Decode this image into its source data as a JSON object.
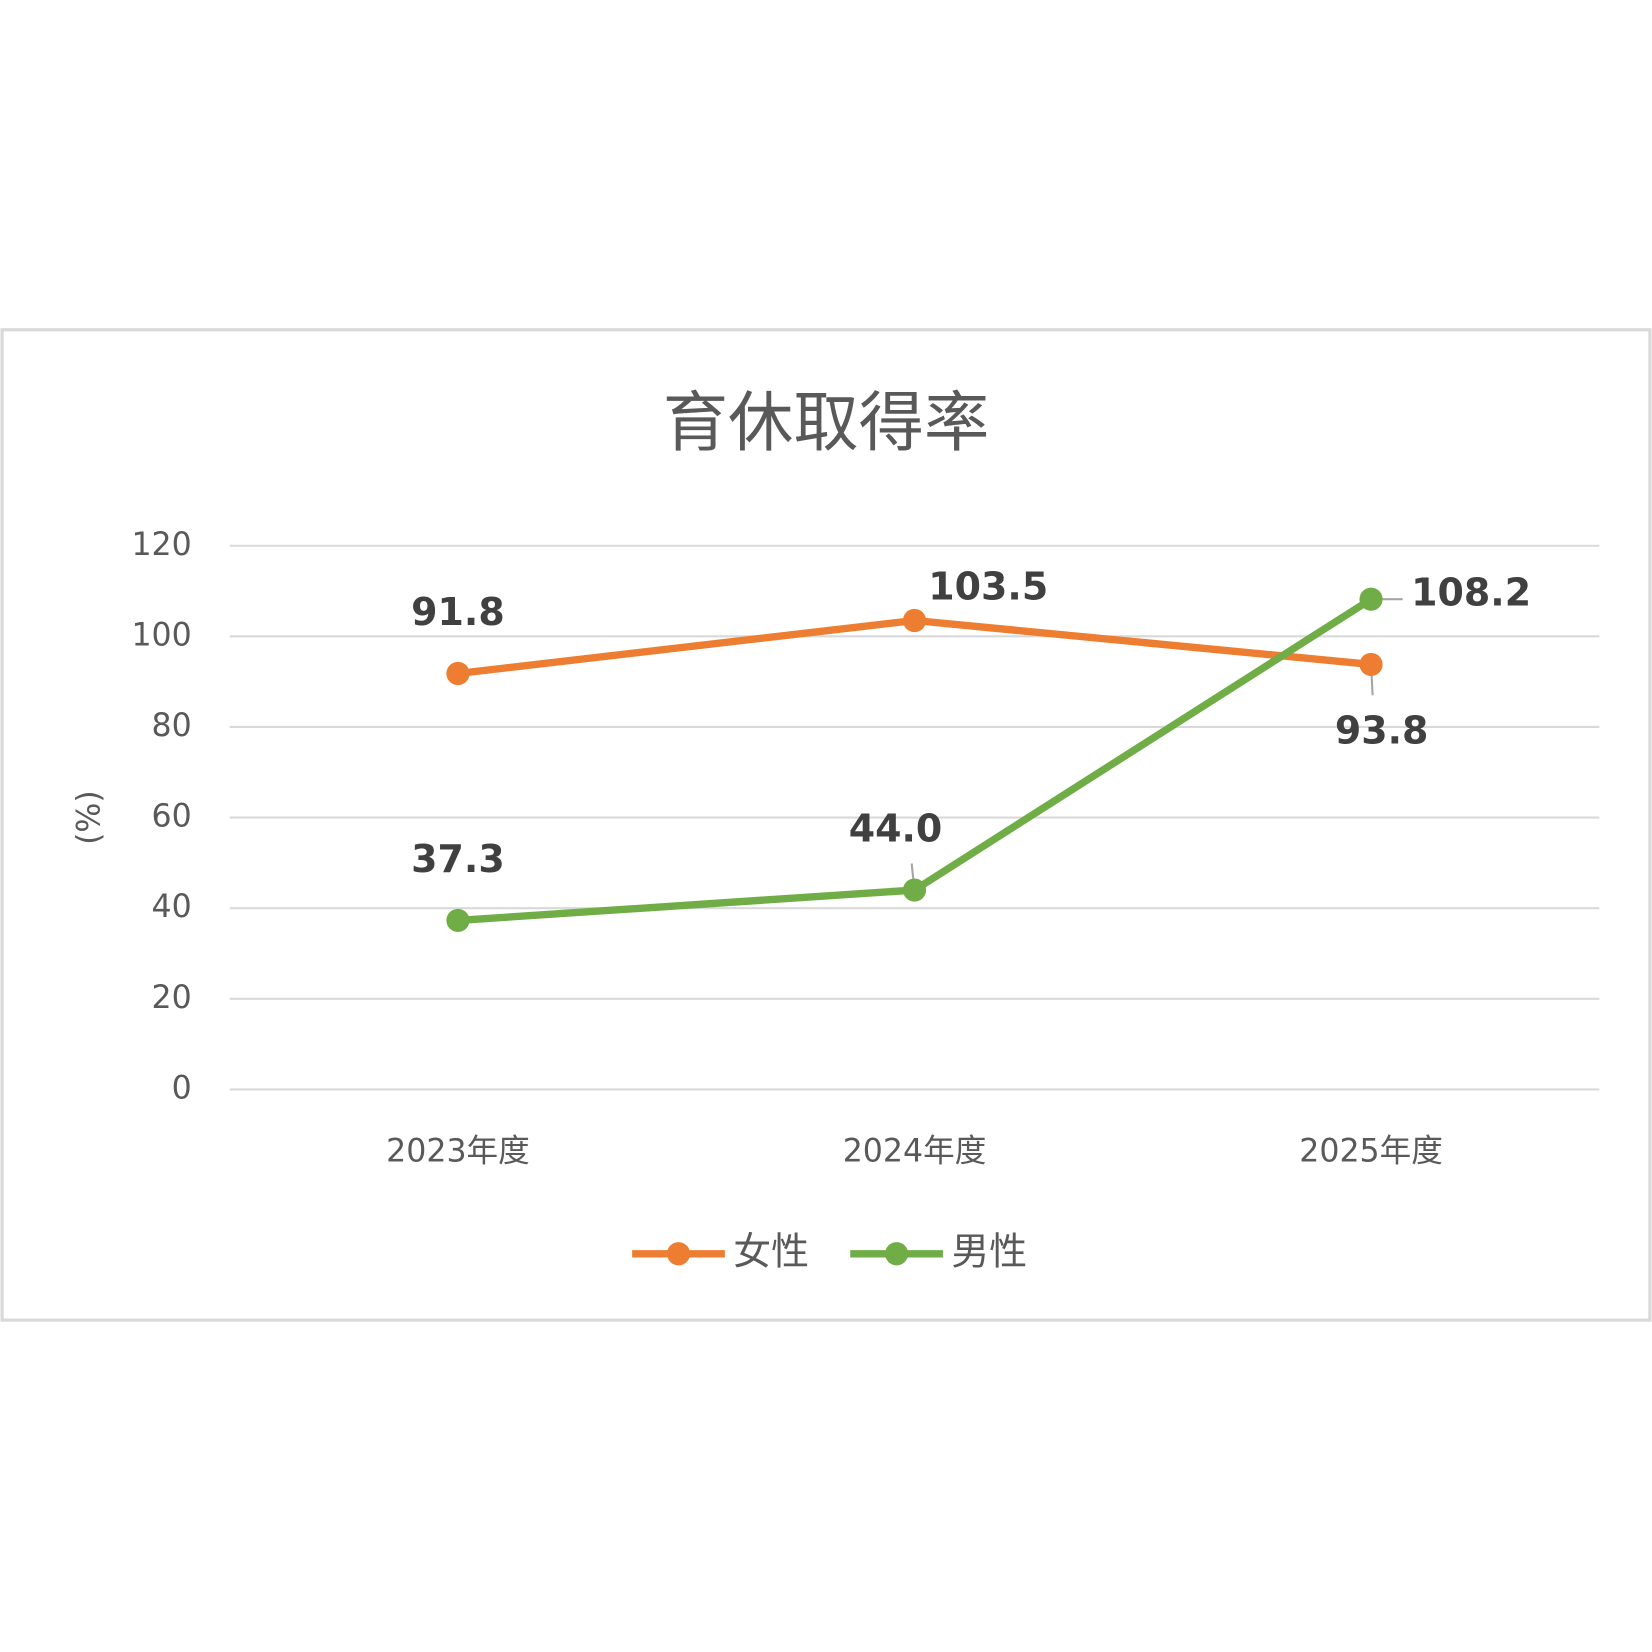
{
  "chart_data": {
    "type": "line",
    "title": "育休取得率",
    "y_label": "(%)",
    "categories": [
      "2023年度",
      "2024年度",
      "2025年度"
    ],
    "series": [
      {
        "name": "女性",
        "color": "#ed7d31",
        "values": [
          91.8,
          103.5,
          93.8
        ],
        "value_labels": [
          "91.8",
          "103.5",
          "93.8"
        ]
      },
      {
        "name": "男性",
        "color": "#70ad47",
        "values": [
          37.3,
          44,
          108.2
        ],
        "value_labels": [
          "37.3",
          "44.0",
          "108.2"
        ]
      }
    ],
    "ylim": [
      0,
      120
    ],
    "yticks": [
      0,
      20,
      40,
      60,
      80,
      100,
      120
    ],
    "grid": true,
    "legend": "bottom"
  }
}
